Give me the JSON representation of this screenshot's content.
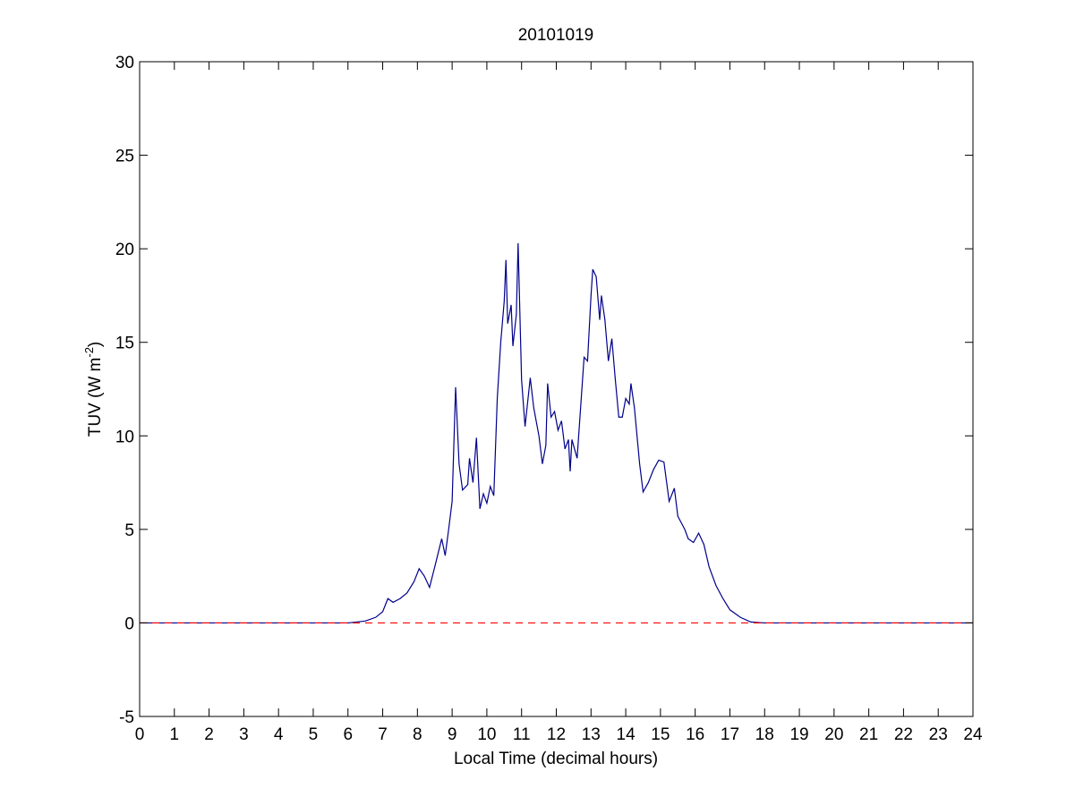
{
  "chart_data": {
    "type": "line",
    "title": "20101019",
    "xlabel": "Local Time (decimal hours)",
    "ylabel": [
      "TUV (W m",
      "-2",
      ")"
    ],
    "xlim": [
      0,
      24
    ],
    "ylim": [
      -5,
      30
    ],
    "xticks": [
      0,
      1,
      2,
      3,
      4,
      5,
      6,
      7,
      8,
      9,
      10,
      11,
      12,
      13,
      14,
      15,
      16,
      17,
      18,
      19,
      20,
      21,
      22,
      23,
      24
    ],
    "yticks": [
      -5,
      0,
      5,
      10,
      15,
      20,
      25,
      30
    ],
    "series": [
      {
        "color": "#00008b",
        "dash": false,
        "x": [
          0,
          6.0,
          6.5,
          6.8,
          7.0,
          7.15,
          7.3,
          7.5,
          7.7,
          7.9,
          8.05,
          8.2,
          8.35,
          8.5,
          8.7,
          8.8,
          8.9,
          9.0,
          9.1,
          9.2,
          9.3,
          9.45,
          9.5,
          9.6,
          9.7,
          9.8,
          9.9,
          10.0,
          10.1,
          10.2,
          10.3,
          10.4,
          10.5,
          10.55,
          10.6,
          10.7,
          10.75,
          10.85,
          10.9,
          11.0,
          11.1,
          11.25,
          11.35,
          11.5,
          11.6,
          11.7,
          11.75,
          11.85,
          11.95,
          12.05,
          12.15,
          12.25,
          12.35,
          12.4,
          12.45,
          12.6,
          12.7,
          12.8,
          12.9,
          13.0,
          13.05,
          13.15,
          13.25,
          13.3,
          13.4,
          13.5,
          13.6,
          13.7,
          13.8,
          13.9,
          14.0,
          14.1,
          14.15,
          14.25,
          14.4,
          14.5,
          14.65,
          14.8,
          14.95,
          15.1,
          15.25,
          15.4,
          15.5,
          15.7,
          15.8,
          15.95,
          16.1,
          16.25,
          16.4,
          16.6,
          16.8,
          17.0,
          17.3,
          17.6,
          18.0,
          24
        ],
        "values": [
          0,
          0,
          0.1,
          0.3,
          0.6,
          1.3,
          1.1,
          1.3,
          1.6,
          2.2,
          2.9,
          2.5,
          1.9,
          3.0,
          4.5,
          3.6,
          5.0,
          6.5,
          12.6,
          8.5,
          7.1,
          7.4,
          8.8,
          7.5,
          9.9,
          6.1,
          6.9,
          6.4,
          7.3,
          6.8,
          12.0,
          15.0,
          17.2,
          19.4,
          16.0,
          17.0,
          14.8,
          16.5,
          20.3,
          13.0,
          10.5,
          13.1,
          11.5,
          10.0,
          8.5,
          9.5,
          12.8,
          11.0,
          11.3,
          10.3,
          10.8,
          9.3,
          9.8,
          8.1,
          9.8,
          8.8,
          11.5,
          14.2,
          14.0,
          17.5,
          18.9,
          18.5,
          16.2,
          17.5,
          16.2,
          14.0,
          15.2,
          13.0,
          11.0,
          11.0,
          12.0,
          11.7,
          12.8,
          11.5,
          8.5,
          7.0,
          7.5,
          8.2,
          8.7,
          8.6,
          6.5,
          7.2,
          5.7,
          5.0,
          4.5,
          4.3,
          4.8,
          4.2,
          3.0,
          2.0,
          1.3,
          0.7,
          0.3,
          0.05,
          0,
          0
        ]
      },
      {
        "color": "#ff0000",
        "dash": true,
        "x": [
          0,
          24
        ],
        "values": [
          0,
          0
        ]
      }
    ]
  }
}
